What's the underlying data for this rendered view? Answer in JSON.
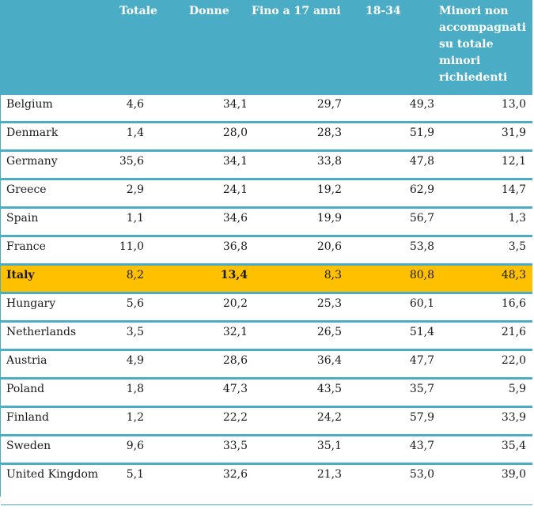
{
  "table": {
    "headers": [
      "",
      "Totale",
      "Donne",
      "Fino a 17 anni",
      "18-34",
      "Minori non accompagnati su totale minori richiedenti"
    ],
    "rows": [
      {
        "country": "Belgium",
        "values": [
          "4,6",
          "34,1",
          "29,7",
          "49,3",
          "13,0"
        ]
      },
      {
        "country": "Denmark",
        "values": [
          "1,4",
          "28,0",
          "28,3",
          "51,9",
          "31,9"
        ]
      },
      {
        "country": "Germany",
        "values": [
          "35,6",
          "34,1",
          "33,8",
          "47,8",
          "12,1"
        ]
      },
      {
        "country": "Greece",
        "values": [
          "2,9",
          "24,1",
          "19,2",
          "62,9",
          "14,7"
        ]
      },
      {
        "country": "Spain",
        "values": [
          "1,1",
          "34,6",
          "19,9",
          "56,7",
          "1,3"
        ]
      },
      {
        "country": "France",
        "values": [
          "11,0",
          "36,8",
          "20,6",
          "53,8",
          "3,5"
        ]
      },
      {
        "country": "Italy",
        "values": [
          "8,2",
          "13,4",
          "8,3",
          "80,8",
          "48,3"
        ]
      },
      {
        "country": "Hungary",
        "values": [
          "5,6",
          "20,2",
          "25,3",
          "60,1",
          "16,6"
        ]
      },
      {
        "country": "Netherlands",
        "values": [
          "3,5",
          "32,1",
          "26,5",
          "51,4",
          "21,6"
        ]
      },
      {
        "country": "Austria",
        "values": [
          "4,9",
          "28,6",
          "36,4",
          "47,7",
          "22,0"
        ]
      },
      {
        "country": "Poland",
        "values": [
          "1,8",
          "47,3",
          "43,5",
          "35,7",
          "5,9"
        ]
      },
      {
        "country": "Finland",
        "values": [
          "1,2",
          "22,2",
          "24,2",
          "57,9",
          "33,9"
        ]
      },
      {
        "country": "Sweden",
        "values": [
          "9,6",
          "33,5",
          "35,1",
          "43,7",
          "35,4"
        ]
      },
      {
        "country": "United Kingdom",
        "values": [
          "5,1",
          "32,6",
          "21,3",
          "53,0",
          "39,0"
        ]
      }
    ]
  },
  "colors": {
    "header_bg": "#4bacc6",
    "highlight_bg": "#ffc000"
  }
}
